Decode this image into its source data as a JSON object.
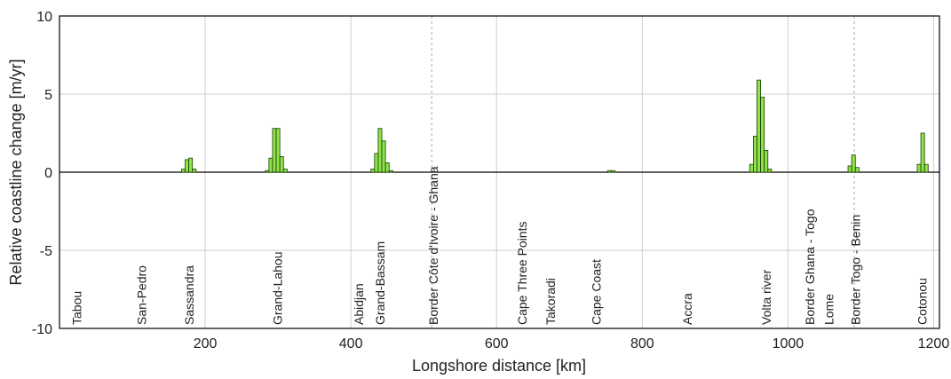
{
  "chart_data": {
    "type": "bar",
    "xlabel": "Longshore distance [km]",
    "ylabel": "Relative coastline change [m/yr]",
    "x": [
      170,
      175,
      180,
      185,
      285,
      290,
      295,
      300,
      305,
      310,
      430,
      435,
      440,
      445,
      450,
      455,
      755,
      760,
      950,
      955,
      960,
      965,
      970,
      975,
      1085,
      1090,
      1095,
      1180,
      1185,
      1190
    ],
    "values": [
      0.2,
      0.8,
      0.9,
      0.2,
      0.1,
      0.9,
      2.8,
      2.8,
      1.0,
      0.2,
      0.2,
      1.2,
      2.8,
      2.0,
      0.6,
      0.1,
      0.1,
      0.1,
      0.5,
      2.3,
      5.9,
      4.8,
      1.4,
      0.2,
      0.4,
      1.1,
      0.3,
      0.5,
      2.5,
      0.5
    ],
    "color": "#8ee34a",
    "xlim": [
      0,
      1208
    ],
    "xticks": [
      200,
      400,
      600,
      800,
      1000,
      1200
    ],
    "ylim": [
      -10,
      10
    ],
    "yticks": [
      -10,
      -5,
      0,
      5,
      10
    ],
    "grid": true,
    "dashed_lines": [
      511,
      1091
    ],
    "annotations": [
      {
        "text": "Tabou",
        "x": 24
      },
      {
        "text": "San-Pedro",
        "x": 113
      },
      {
        "text": "Sassandra",
        "x": 178
      },
      {
        "text": "Grand-Lahou",
        "x": 299
      },
      {
        "text": "Abidjan",
        "x": 411
      },
      {
        "text": "Grand-Bassam",
        "x": 440
      },
      {
        "text": "Border Côte d'Ivoire - Ghana",
        "x": 513
      },
      {
        "text": "Cape Three Points",
        "x": 635
      },
      {
        "text": "Takoradi",
        "x": 674
      },
      {
        "text": "Cape Coast",
        "x": 737
      },
      {
        "text": "Accra",
        "x": 862
      },
      {
        "text": "Volta river",
        "x": 970
      },
      {
        "text": "Border Ghana - Togo",
        "x": 1030
      },
      {
        "text": "Lome",
        "x": 1056
      },
      {
        "text": "Border Togo - Benin",
        "x": 1093
      },
      {
        "text": "Cotonou",
        "x": 1184
      }
    ]
  }
}
